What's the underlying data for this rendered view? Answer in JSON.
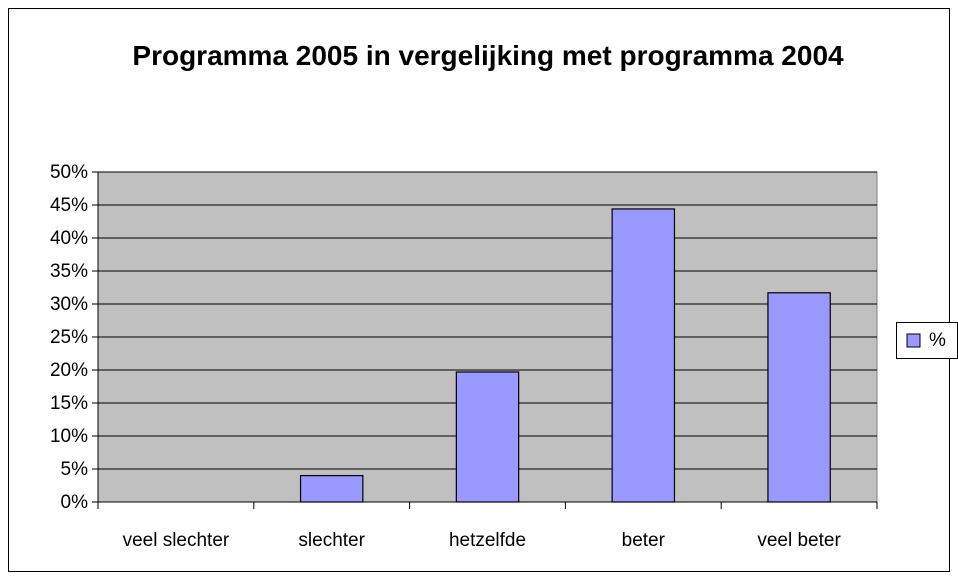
{
  "chart_data": {
    "type": "bar",
    "title": "Programma 2005 in vergelijking met programma 2004",
    "categories": [
      "veel slechter",
      "slechter",
      "hetzelfde",
      "beter",
      "veel beter"
    ],
    "series": [
      {
        "name": "%",
        "color": "#9999ff",
        "values": [
          0,
          4,
          19.7,
          44.4,
          31.7
        ]
      }
    ],
    "ylim": [
      0,
      50
    ],
    "yticks": [
      {
        "value": 0,
        "label": "0%"
      },
      {
        "value": 5,
        "label": "5%"
      },
      {
        "value": 10,
        "label": "10%"
      },
      {
        "value": 15,
        "label": "15%"
      },
      {
        "value": 20,
        "label": "20%"
      },
      {
        "value": 25,
        "label": "25%"
      },
      {
        "value": 30,
        "label": "30%"
      },
      {
        "value": 35,
        "label": "35%"
      },
      {
        "value": 40,
        "label": "40%"
      },
      {
        "value": 45,
        "label": "45%"
      },
      {
        "value": 50,
        "label": "50%"
      }
    ],
    "grid": true,
    "legend": "right"
  }
}
